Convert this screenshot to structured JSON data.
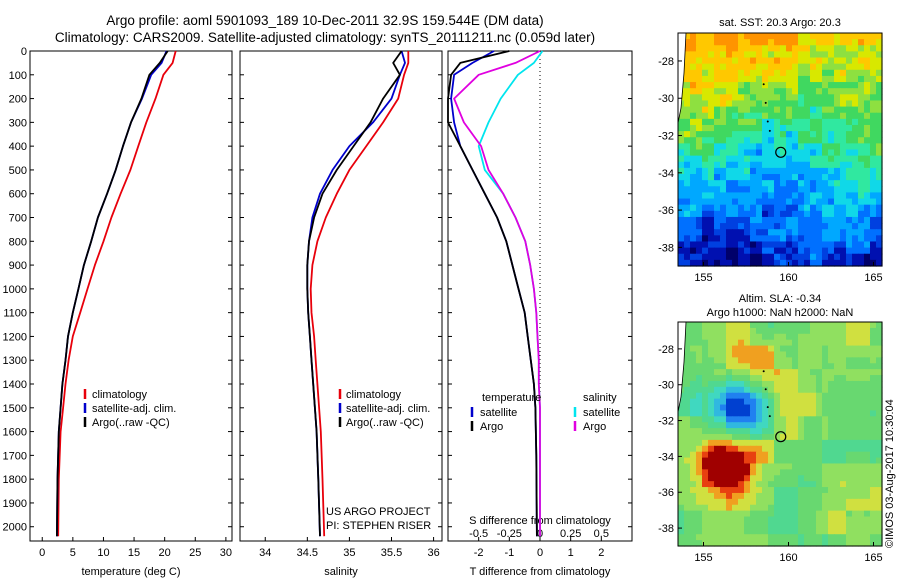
{
  "titles": {
    "line1": "Argo profile: aoml 5901093_189 10-Dec-2011 32.9S 159.544E (DM data)",
    "line2": "Climatology: CARS2009. Satellite-adjusted climatology: synTS_20111211.nc (0.059d later)"
  },
  "colors": {
    "climatology": "#e8000b",
    "satellite": "#0000cc",
    "argo": "#000000",
    "salinity_sat": "#00e5ee",
    "salinity_argo": "#e000e0"
  },
  "chart_data": [
    {
      "type": "line",
      "name": "temperature-panel",
      "xlabel": "temperature (deg C)",
      "ylabel": "",
      "xlim": [
        -2,
        31
      ],
      "ylim": [
        2060,
        0
      ],
      "xticks": [
        0,
        5,
        10,
        15,
        20,
        25,
        30
      ],
      "yticks": [
        0,
        100,
        200,
        300,
        400,
        500,
        600,
        700,
        800,
        900,
        1000,
        1100,
        1200,
        1300,
        1400,
        1500,
        1600,
        1700,
        1800,
        1900,
        2000
      ],
      "legend": [
        "climatology",
        "satellite-adj. clim.",
        "Argo(..raw -QC)"
      ],
      "series": [
        {
          "name": "climatology",
          "x": [
            21.8,
            21.3,
            19.8,
            18.5,
            17,
            15.7,
            14.4,
            12.8,
            11.3,
            10,
            8.6,
            7.4,
            6.2,
            5,
            4.3,
            3.8,
            3.4,
            3,
            2.7,
            2.6
          ],
          "y": [
            0,
            50,
            100,
            200,
            300,
            400,
            500,
            600,
            700,
            800,
            900,
            1000,
            1100,
            1200,
            1300,
            1400,
            1500,
            1600,
            1800,
            2040
          ]
        },
        {
          "name": "satellite-adj. clim.",
          "x": [
            20.3,
            19.5,
            17.8,
            16.3,
            14.5,
            13.2,
            12,
            10.6,
            9.1,
            8,
            6.8,
            5.9,
            5,
            4.2,
            3.8,
            3.3,
            3,
            2.7,
            2.5,
            2.4
          ],
          "y": [
            0,
            50,
            100,
            200,
            300,
            400,
            500,
            600,
            700,
            800,
            900,
            1000,
            1100,
            1200,
            1300,
            1400,
            1500,
            1600,
            1800,
            2040
          ]
        },
        {
          "name": "Argo(..raw -QC)",
          "x": [
            20.5,
            19.2,
            17.5,
            16.2,
            14.5,
            13.2,
            12,
            10.6,
            9.1,
            8,
            6.8,
            5.9,
            5,
            4.2,
            3.8,
            3.3,
            3,
            2.7,
            2.5,
            2.4
          ],
          "y": [
            0,
            50,
            100,
            200,
            300,
            400,
            500,
            600,
            700,
            800,
            900,
            1000,
            1100,
            1200,
            1300,
            1400,
            1500,
            1600,
            1800,
            2040
          ]
        }
      ]
    },
    {
      "type": "line",
      "name": "salinity-panel",
      "xlabel": "salinity",
      "xlim": [
        33.7,
        36.1
      ],
      "ylim": [
        2060,
        0
      ],
      "xticks": [
        34,
        34.5,
        35,
        35.5,
        36
      ],
      "legend": [
        "climatology",
        "satellite-adj. clim.",
        "Argo(..raw -QC)"
      ],
      "annotations": [
        "US ARGO PROJECT",
        "PI: STEPHEN RISER"
      ],
      "series": [
        {
          "name": "climatology",
          "x": [
            35.7,
            35.7,
            35.65,
            35.58,
            35.4,
            35.2,
            35.0,
            34.85,
            34.72,
            34.62,
            34.56,
            34.54,
            34.55,
            34.58,
            34.6,
            34.62,
            34.64,
            34.66,
            34.68,
            34.7
          ],
          "y": [
            0,
            50,
            100,
            200,
            300,
            400,
            500,
            600,
            700,
            800,
            900,
            1000,
            1100,
            1200,
            1300,
            1400,
            1500,
            1600,
            1800,
            2040
          ]
        },
        {
          "name": "satellite-adj. clim.",
          "x": [
            35.62,
            35.66,
            35.6,
            35.5,
            35.28,
            35.0,
            34.8,
            34.65,
            34.56,
            34.52,
            34.5,
            34.5,
            34.51,
            34.53,
            34.55,
            34.57,
            34.59,
            34.61,
            34.63,
            34.65
          ],
          "y": [
            0,
            50,
            100,
            200,
            300,
            400,
            500,
            600,
            700,
            800,
            900,
            1000,
            1100,
            1200,
            1300,
            1400,
            1500,
            1600,
            1800,
            2040
          ]
        },
        {
          "name": "Argo(..raw -QC)",
          "x": [
            35.62,
            35.52,
            35.6,
            35.4,
            35.25,
            35.05,
            34.85,
            34.68,
            34.58,
            34.52,
            34.5,
            34.5,
            34.51,
            34.53,
            34.55,
            34.57,
            34.59,
            34.61,
            34.63,
            34.65
          ],
          "y": [
            0,
            50,
            100,
            200,
            300,
            400,
            500,
            600,
            700,
            800,
            900,
            1000,
            1100,
            1200,
            1300,
            1400,
            1500,
            1600,
            1800,
            2040
          ]
        }
      ]
    },
    {
      "type": "line",
      "name": "difference-panel",
      "xlabel": "T difference from climatology",
      "top_label": "S difference from climatology",
      "xlim": [
        -3,
        3
      ],
      "ylim": [
        2060,
        0
      ],
      "xticks_T": [
        -2,
        -1,
        0,
        1,
        2
      ],
      "xticks_S": [
        "-0.5",
        "-0.25",
        "0",
        "0.25",
        "0.5"
      ],
      "legend_T": [
        "temperature",
        "satellite",
        "Argo"
      ],
      "legend_S": [
        "salinity",
        "satellite",
        "Argo"
      ],
      "series": [
        {
          "name": "T satellite",
          "x": [
            -1.5,
            -2.2,
            -2.8,
            -2.9,
            -2.8,
            -2.6,
            -2.2,
            -1.8,
            -1.4,
            -1.1,
            -0.9,
            -0.7,
            -0.5,
            -0.4,
            -0.3,
            -0.2,
            -0.15,
            -0.12,
            -0.1
          ],
          "y": [
            0,
            50,
            100,
            200,
            300,
            400,
            500,
            600,
            700,
            800,
            900,
            1000,
            1100,
            1200,
            1300,
            1400,
            1500,
            1700,
            2040
          ]
        },
        {
          "name": "T Argo",
          "x": [
            -1.0,
            -2.6,
            -2.9,
            -3.0,
            -3.0,
            -2.6,
            -2.2,
            -1.8,
            -1.4,
            -1.1,
            -0.9,
            -0.7,
            -0.5,
            -0.4,
            -0.3,
            -0.2,
            -0.15,
            -0.12,
            -0.1
          ],
          "y": [
            0,
            50,
            100,
            200,
            300,
            400,
            500,
            600,
            700,
            800,
            900,
            1000,
            1100,
            1200,
            1300,
            1400,
            1500,
            1700,
            2040
          ]
        },
        {
          "name": "S satellite",
          "x": [
            0.02,
            -0.05,
            -0.18,
            -0.32,
            -0.42,
            -0.5,
            -0.45,
            -0.3,
            -0.2,
            -0.12,
            -0.08,
            -0.05,
            -0.03,
            -0.02,
            -0.01,
            -0.01,
            0.0,
            0.0,
            0.0
          ],
          "y": [
            0,
            50,
            100,
            200,
            300,
            400,
            500,
            600,
            700,
            800,
            900,
            1000,
            1100,
            1200,
            1300,
            1400,
            1500,
            1700,
            2040
          ]
        },
        {
          "name": "S Argo",
          "x": [
            0.0,
            -0.2,
            -0.5,
            -0.7,
            -0.62,
            -0.48,
            -0.42,
            -0.3,
            -0.2,
            -0.12,
            -0.08,
            -0.05,
            -0.03,
            -0.02,
            -0.01,
            -0.01,
            0.0,
            0.0,
            0.0
          ],
          "y": [
            0,
            50,
            100,
            200,
            300,
            400,
            500,
            600,
            700,
            800,
            900,
            1000,
            1100,
            1200,
            1300,
            1400,
            1500,
            1700,
            2040
          ]
        }
      ]
    },
    {
      "type": "heatmap",
      "name": "sst-map",
      "title": "sat. SST: 20.3 Argo: 20.3",
      "xticks": [
        155,
        160,
        165
      ],
      "yticks": [
        -28,
        -30,
        -32,
        -34,
        -36,
        -38
      ],
      "xlim": [
        153.5,
        165.5
      ],
      "ylim": [
        -39,
        -26.5
      ],
      "argo_position": [
        159.544,
        -32.9
      ]
    },
    {
      "type": "heatmap",
      "name": "sla-map",
      "title_line1": "Altim. SLA: -0.34",
      "title_line2": "Argo h1000: NaN h2000: NaN",
      "xticks": [
        155,
        160,
        165
      ],
      "yticks": [
        -28,
        -30,
        -32,
        -34,
        -36,
        -38
      ],
      "xlim": [
        153.5,
        165.5
      ],
      "ylim": [
        -39,
        -26.5
      ],
      "argo_position": [
        159.544,
        -32.9
      ]
    }
  ],
  "side_label": "©IMOS 03-Aug-2017 10:30:04"
}
